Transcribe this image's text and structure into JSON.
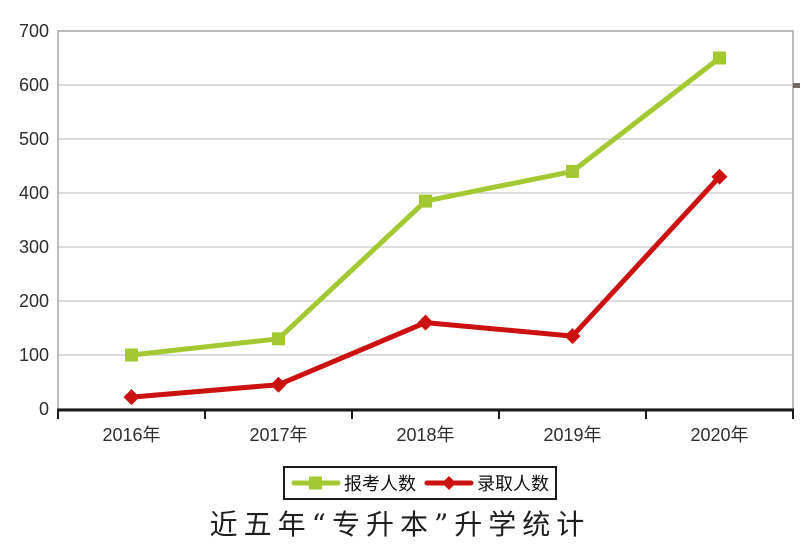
{
  "chart_data": {
    "type": "line",
    "title": "近五年“专升本”升学统计",
    "categories": [
      "2016年",
      "2017年",
      "2018年",
      "2019年",
      "2020年"
    ],
    "series": [
      {
        "name": "报考人数",
        "marker": "square",
        "color": "#a3c832",
        "values": [
          100,
          130,
          385,
          440,
          650
        ]
      },
      {
        "name": "录取人数",
        "marker": "diamond",
        "color": "#cc1111",
        "values": [
          22,
          45,
          160,
          135,
          430
        ]
      }
    ],
    "ylim": [
      0,
      700
    ],
    "yticks": [
      0,
      100,
      200,
      300,
      400,
      500,
      600,
      700
    ],
    "grid": "horizontal-only",
    "legend_position": "bottom",
    "colors": {
      "gridline": "#c6c6c6",
      "plot_border": "#a9a9a9",
      "axis_line": "#1a1a1a",
      "tick_label": "#2e2e2e",
      "legend_border": "#1b1b1b",
      "title_text": "#1f1f1f"
    }
  }
}
